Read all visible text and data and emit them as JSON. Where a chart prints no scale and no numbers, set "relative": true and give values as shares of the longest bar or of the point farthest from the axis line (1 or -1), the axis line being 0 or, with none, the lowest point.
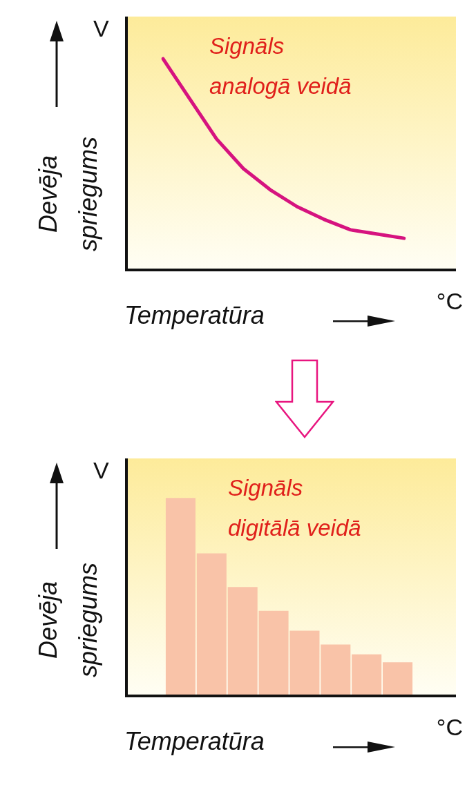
{
  "chart_data": [
    {
      "type": "line",
      "xlabel": "Temperatūra",
      "ylabel": "Devēja spriegums",
      "annotations": [
        "V",
        "°C"
      ],
      "relative": true,
      "categories": [
        null,
        null,
        null,
        null,
        null,
        null,
        null,
        null,
        null,
        null
      ],
      "series": [
        {
          "name": "Signāls analogā veidā",
          "color": "#d6137f",
          "values": [
            1,
            0.81,
            0.62,
            0.48,
            0.38,
            0.3,
            0.24,
            0.19,
            0.17,
            0.15
          ]
        }
      ]
    },
    {
      "type": "bar",
      "xlabel": "Temperatūra",
      "ylabel": "Devēja spriegums",
      "annotations": [
        "V",
        "°C"
      ],
      "relative": true,
      "categories": [
        null,
        null,
        null,
        null,
        null,
        null,
        null,
        null
      ],
      "series": [
        {
          "name": "Signāls digitālā veidā",
          "color": "#f9c3a8",
          "values": [
            1,
            0.72,
            0.55,
            0.43,
            0.33,
            0.26,
            0.21,
            0.17
          ]
        }
      ]
    }
  ]
}
